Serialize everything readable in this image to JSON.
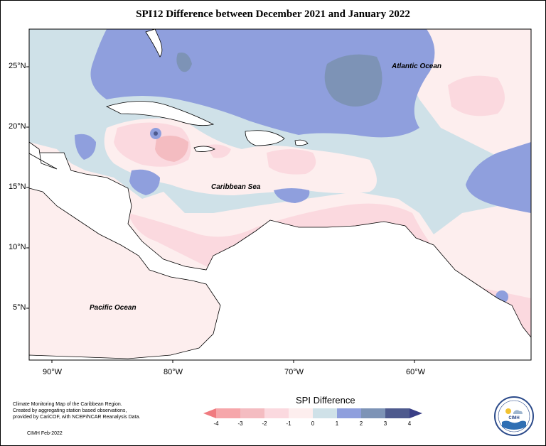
{
  "title": "SPI12 Difference between December 2021 and January 2022",
  "lat_labels": [
    "25°N",
    "20°N",
    "15°N",
    "10°N",
    "5°N"
  ],
  "lon_labels": [
    "90°W",
    "80°W",
    "70°W",
    "60°W"
  ],
  "ocean_labels": {
    "atlantic": "Atlantic Ocean",
    "caribbean": "Caribbean Sea",
    "pacific": "Pacific Ocean"
  },
  "credits": [
    "Climate Monitoring Map of the Caribbean Region.",
    "Created by aggregating station based observations,",
    "provided by CariCOF, with NCEP/NCAR Reanalysis Data."
  ],
  "date_note": "CIMH Feb-2022",
  "legend": {
    "title": "SPI Difference",
    "ticks": [
      "-4",
      "-3",
      "-2",
      "-1",
      "0",
      "1",
      "2",
      "3",
      "4"
    ],
    "colors": [
      "#f07b80",
      "#f6a6aa",
      "#f4bcc1",
      "#fbd9df",
      "#fdeeee",
      "#cfe1e8",
      "#8f9fdd",
      "#7d93b6",
      "#4e5a8e",
      "#3a3f86"
    ]
  },
  "logo": {
    "text": "CIMH",
    "icon": "cimh-logo-icon"
  },
  "colors": {
    "land": "#ffffff",
    "neutral": "#fdeeee",
    "light_blue": "#cfe1e8",
    "blue": "#8f9fdd",
    "pink": "#fbd9df",
    "red": "#f4bcc1"
  }
}
